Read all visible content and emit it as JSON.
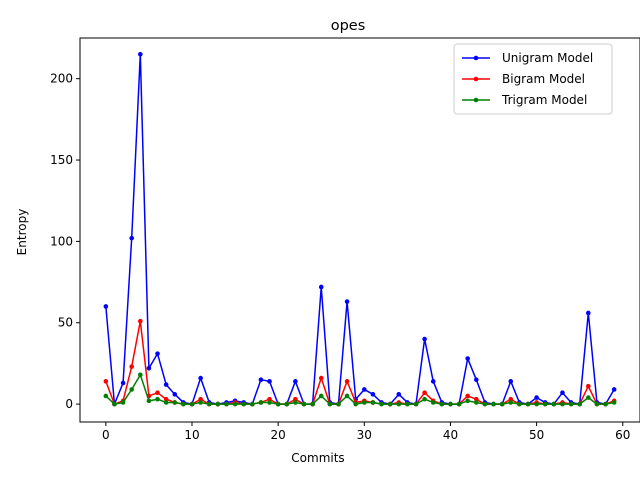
{
  "chart_data": {
    "type": "line",
    "title": "opes",
    "xlabel": "Commits",
    "ylabel": "Entropy",
    "xlim": [
      -3,
      62
    ],
    "ylim": [
      -11,
      225
    ],
    "xticks": [
      0,
      10,
      20,
      30,
      40,
      50,
      60
    ],
    "yticks": [
      0,
      50,
      100,
      150,
      200
    ],
    "grid": false,
    "legend_position": "top-right",
    "x": [
      0,
      1,
      2,
      3,
      4,
      5,
      6,
      7,
      8,
      9,
      10,
      11,
      12,
      13,
      14,
      15,
      16,
      17,
      18,
      19,
      20,
      21,
      22,
      23,
      24,
      25,
      26,
      27,
      28,
      29,
      30,
      31,
      32,
      33,
      34,
      35,
      36,
      37,
      38,
      39,
      40,
      41,
      42,
      43,
      44,
      45,
      46,
      47,
      48,
      49,
      50,
      51,
      52,
      53,
      54,
      55,
      56,
      57,
      58,
      59
    ],
    "series": [
      {
        "name": "Unigram Model",
        "color": "#0000ff",
        "values": [
          60,
          0,
          13,
          102,
          215,
          22,
          31,
          12,
          6,
          1,
          0,
          16,
          1,
          0,
          1,
          2,
          1,
          0,
          15,
          14,
          0,
          0,
          14,
          0,
          0,
          72,
          1,
          0,
          63,
          3,
          9,
          6,
          1,
          0,
          6,
          1,
          0,
          40,
          14,
          1,
          0,
          0,
          28,
          15,
          1,
          0,
          0,
          14,
          1,
          0,
          4,
          1,
          0,
          7,
          1,
          0,
          56,
          1,
          0,
          9
        ]
      },
      {
        "name": "Bigram Model",
        "color": "#ff0000",
        "values": [
          14,
          0,
          2,
          23,
          51,
          5,
          7,
          3,
          1,
          0,
          0,
          3,
          0,
          0,
          0,
          1,
          0,
          0,
          1,
          3,
          0,
          0,
          3,
          0,
          0,
          16,
          0,
          0,
          14,
          1,
          2,
          1,
          0,
          0,
          1,
          0,
          0,
          7,
          2,
          0,
          0,
          0,
          5,
          3,
          0,
          0,
          0,
          3,
          0,
          0,
          1,
          0,
          0,
          1,
          0,
          0,
          11,
          0,
          0,
          2
        ]
      },
      {
        "name": "Trigram Model",
        "color": "#008000",
        "values": [
          5,
          0,
          1,
          9,
          18,
          2,
          3,
          1,
          1,
          0,
          0,
          1,
          0,
          0,
          0,
          0,
          0,
          0,
          1,
          1,
          0,
          0,
          1,
          0,
          0,
          5,
          0,
          0,
          5,
          0,
          1,
          1,
          0,
          0,
          0,
          0,
          0,
          3,
          1,
          0,
          0,
          0,
          2,
          1,
          0,
          0,
          0,
          1,
          0,
          0,
          0,
          0,
          0,
          0,
          0,
          0,
          4,
          0,
          0,
          1
        ]
      }
    ]
  }
}
